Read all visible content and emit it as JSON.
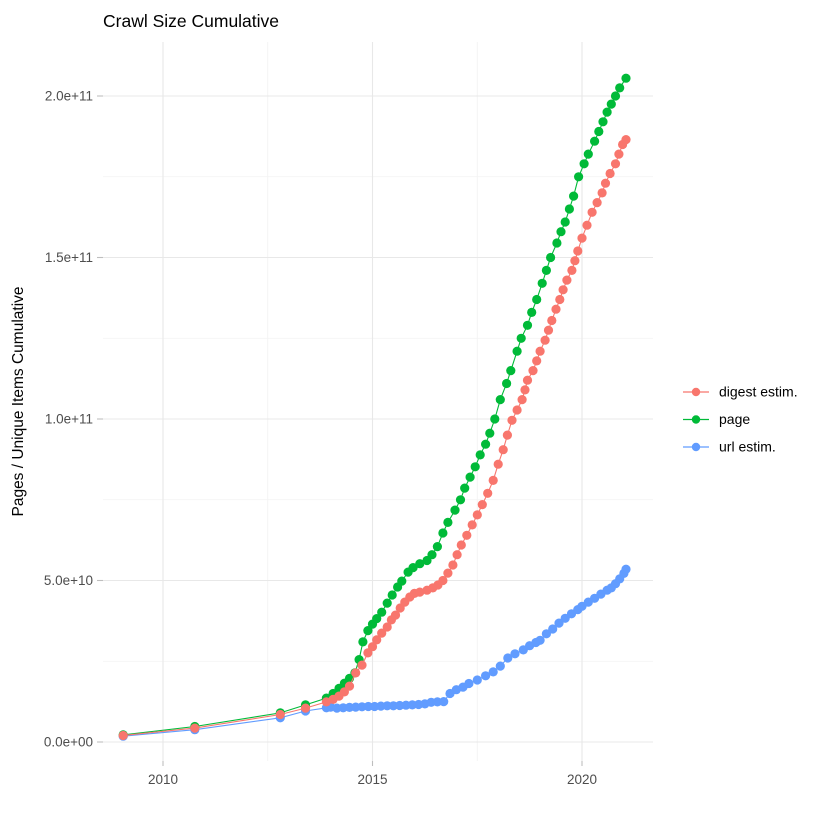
{
  "chart_data": {
    "type": "line",
    "title": "Crawl Size Cumulative",
    "y_label": "Pages / Unique Items Cumulative",
    "x_label": "",
    "x_unit": "decimal year",
    "y_unit": "items (values stored in billions, 1e9)",
    "grid": "on",
    "legend_position": "right-center",
    "xlim": [
      2008.6,
      2021.7
    ],
    "ylim": [
      0,
      216000000000
    ],
    "x_ticks": [
      {
        "label": "2010",
        "year": 2010
      },
      {
        "label": "2015",
        "year": 2015
      },
      {
        "label": "2020",
        "year": 2020
      }
    ],
    "x_minor": [
      2012.5,
      2017.5
    ],
    "y_ticks": [
      {
        "label": "0.0e+00",
        "value": 0
      },
      {
        "label": "5.0e+10",
        "value": 50
      },
      {
        "label": "1.0e+11",
        "value": 100
      },
      {
        "label": "1.5e+11",
        "value": 150
      },
      {
        "label": "2.0e+11",
        "value": 200
      }
    ],
    "y_minor": [
      25,
      75,
      125,
      175
    ],
    "draw_order": [
      2,
      1,
      0
    ],
    "series": [
      {
        "name": "digest estim.",
        "color": "#F8766D",
        "points": [
          [
            2009.05,
            2.0
          ],
          [
            2010.76,
            4.3
          ],
          [
            2012.8,
            8.5
          ],
          [
            2013.4,
            10.5
          ],
          [
            2013.9,
            12.4
          ],
          [
            2014.06,
            13.2
          ],
          [
            2014.2,
            14.2
          ],
          [
            2014.33,
            15.5
          ],
          [
            2014.45,
            17.3
          ],
          [
            2014.6,
            21.4
          ],
          [
            2014.75,
            23.8
          ],
          [
            2014.89,
            27.6
          ],
          [
            2015.0,
            29.5
          ],
          [
            2015.1,
            31.6
          ],
          [
            2015.22,
            33.7
          ],
          [
            2015.35,
            35.6
          ],
          [
            2015.45,
            37.8
          ],
          [
            2015.55,
            39.3
          ],
          [
            2015.66,
            41.5
          ],
          [
            2015.77,
            43.3
          ],
          [
            2015.89,
            44.9
          ],
          [
            2016.0,
            46.0
          ],
          [
            2016.13,
            46.4
          ],
          [
            2016.3,
            47.0
          ],
          [
            2016.44,
            47.7
          ],
          [
            2016.56,
            48.6
          ],
          [
            2016.68,
            50.0
          ],
          [
            2016.8,
            52.3
          ],
          [
            2016.92,
            54.8
          ],
          [
            2017.02,
            58.0
          ],
          [
            2017.12,
            61.0
          ],
          [
            2017.25,
            64.0
          ],
          [
            2017.38,
            67.2
          ],
          [
            2017.5,
            70.3
          ],
          [
            2017.62,
            73.5
          ],
          [
            2017.75,
            77.0
          ],
          [
            2017.88,
            81.0
          ],
          [
            2018.0,
            86.0
          ],
          [
            2018.12,
            90.5
          ],
          [
            2018.22,
            95.0
          ],
          [
            2018.33,
            99.6
          ],
          [
            2018.45,
            102.8
          ],
          [
            2018.57,
            106.0
          ],
          [
            2018.64,
            109.0
          ],
          [
            2018.7,
            112.0
          ],
          [
            2018.83,
            115.0
          ],
          [
            2018.92,
            118.0
          ],
          [
            2019.0,
            121.0
          ],
          [
            2019.12,
            124.4
          ],
          [
            2019.2,
            127.5
          ],
          [
            2019.28,
            130.5
          ],
          [
            2019.38,
            134.0
          ],
          [
            2019.47,
            137.0
          ],
          [
            2019.55,
            140.0
          ],
          [
            2019.64,
            143.0
          ],
          [
            2019.76,
            146.0
          ],
          [
            2019.83,
            149.0
          ],
          [
            2019.9,
            152.0
          ],
          [
            2020.0,
            156.0
          ],
          [
            2020.12,
            160.0
          ],
          [
            2020.24,
            164.0
          ],
          [
            2020.36,
            167.0
          ],
          [
            2020.48,
            170.0
          ],
          [
            2020.56,
            173.0
          ],
          [
            2020.67,
            176.0
          ],
          [
            2020.8,
            179.0
          ],
          [
            2020.88,
            182.0
          ],
          [
            2020.97,
            185.0
          ],
          [
            2021.05,
            186.5
          ]
        ]
      },
      {
        "name": "page",
        "color": "#00BA38",
        "points": [
          [
            2009.05,
            2.2
          ],
          [
            2010.76,
            4.8
          ],
          [
            2012.8,
            9.0
          ],
          [
            2013.4,
            11.5
          ],
          [
            2013.9,
            13.6
          ],
          [
            2014.06,
            15.0
          ],
          [
            2014.2,
            16.6
          ],
          [
            2014.33,
            18.2
          ],
          [
            2014.45,
            19.7
          ],
          [
            2014.58,
            21.4
          ],
          [
            2014.68,
            25.5
          ],
          [
            2014.77,
            31.0
          ],
          [
            2014.89,
            34.5
          ],
          [
            2015.0,
            36.5
          ],
          [
            2015.1,
            38.2
          ],
          [
            2015.22,
            40.2
          ],
          [
            2015.35,
            43.0
          ],
          [
            2015.47,
            45.5
          ],
          [
            2015.6,
            48.0
          ],
          [
            2015.7,
            49.8
          ],
          [
            2015.85,
            52.6
          ],
          [
            2015.97,
            54.0
          ],
          [
            2016.13,
            55.2
          ],
          [
            2016.3,
            56.2
          ],
          [
            2016.42,
            58.0
          ],
          [
            2016.55,
            60.5
          ],
          [
            2016.68,
            64.7
          ],
          [
            2016.8,
            68.0
          ],
          [
            2016.97,
            71.8
          ],
          [
            2017.1,
            75.0
          ],
          [
            2017.2,
            78.6
          ],
          [
            2017.33,
            82.0
          ],
          [
            2017.45,
            85.2
          ],
          [
            2017.57,
            88.9
          ],
          [
            2017.7,
            92.2
          ],
          [
            2017.8,
            95.6
          ],
          [
            2017.92,
            100.0
          ],
          [
            2018.05,
            106.0
          ],
          [
            2018.2,
            111.0
          ],
          [
            2018.3,
            115.0
          ],
          [
            2018.45,
            121.0
          ],
          [
            2018.55,
            125.0
          ],
          [
            2018.7,
            129.0
          ],
          [
            2018.8,
            133.0
          ],
          [
            2018.92,
            137.0
          ],
          [
            2019.05,
            142.0
          ],
          [
            2019.15,
            146.0
          ],
          [
            2019.25,
            150.0
          ],
          [
            2019.4,
            154.5
          ],
          [
            2019.5,
            158.0
          ],
          [
            2019.6,
            161.0
          ],
          [
            2019.7,
            165.0
          ],
          [
            2019.8,
            169.0
          ],
          [
            2019.92,
            175.0
          ],
          [
            2020.05,
            179.0
          ],
          [
            2020.15,
            182.0
          ],
          [
            2020.3,
            186.0
          ],
          [
            2020.4,
            189.0
          ],
          [
            2020.5,
            192.0
          ],
          [
            2020.6,
            195.0
          ],
          [
            2020.7,
            197.5
          ],
          [
            2020.8,
            200.0
          ],
          [
            2020.9,
            202.5
          ],
          [
            2021.05,
            205.5
          ]
        ]
      },
      {
        "name": "url estim.",
        "color": "#619CFF",
        "points": [
          [
            2009.05,
            1.8
          ],
          [
            2010.76,
            3.8
          ],
          [
            2012.8,
            7.5
          ],
          [
            2013.4,
            9.6
          ],
          [
            2013.9,
            10.6
          ],
          [
            2014.0,
            10.8
          ],
          [
            2014.15,
            10.5
          ],
          [
            2014.3,
            10.6
          ],
          [
            2014.45,
            10.7
          ],
          [
            2014.6,
            10.8
          ],
          [
            2014.75,
            10.9
          ],
          [
            2014.9,
            11.0
          ],
          [
            2015.05,
            11.0
          ],
          [
            2015.2,
            11.1
          ],
          [
            2015.35,
            11.2
          ],
          [
            2015.5,
            11.2
          ],
          [
            2015.65,
            11.3
          ],
          [
            2015.8,
            11.4
          ],
          [
            2015.95,
            11.5
          ],
          [
            2016.1,
            11.6
          ],
          [
            2016.25,
            11.8
          ],
          [
            2016.4,
            12.3
          ],
          [
            2016.55,
            12.4
          ],
          [
            2016.7,
            12.5
          ],
          [
            2016.85,
            15.0
          ],
          [
            2017.0,
            16.2
          ],
          [
            2017.16,
            17.0
          ],
          [
            2017.3,
            18.1
          ],
          [
            2017.5,
            19.2
          ],
          [
            2017.7,
            20.5
          ],
          [
            2017.88,
            21.7
          ],
          [
            2018.05,
            23.5
          ],
          [
            2018.23,
            26.0
          ],
          [
            2018.4,
            27.3
          ],
          [
            2018.6,
            28.5
          ],
          [
            2018.75,
            29.8
          ],
          [
            2018.9,
            30.8
          ],
          [
            2019.0,
            31.5
          ],
          [
            2019.15,
            33.5
          ],
          [
            2019.3,
            35.0
          ],
          [
            2019.45,
            36.8
          ],
          [
            2019.6,
            38.3
          ],
          [
            2019.75,
            39.7
          ],
          [
            2019.9,
            41.0
          ],
          [
            2020.0,
            42.0
          ],
          [
            2020.15,
            43.3
          ],
          [
            2020.3,
            44.5
          ],
          [
            2020.45,
            45.8
          ],
          [
            2020.6,
            47.0
          ],
          [
            2020.7,
            47.7
          ],
          [
            2020.8,
            49.0
          ],
          [
            2020.9,
            50.5
          ],
          [
            2021.0,
            52.2
          ],
          [
            2021.05,
            53.5
          ]
        ]
      }
    ],
    "style": {
      "grid_major_color": "#E8E8E8",
      "grid_minor_color": "#F2F2F2",
      "tick_mark_color": "#BEBEBE",
      "tick_label_color": "#4D4D4D",
      "title_color": "#000000",
      "point_radius": 4.6
    }
  }
}
